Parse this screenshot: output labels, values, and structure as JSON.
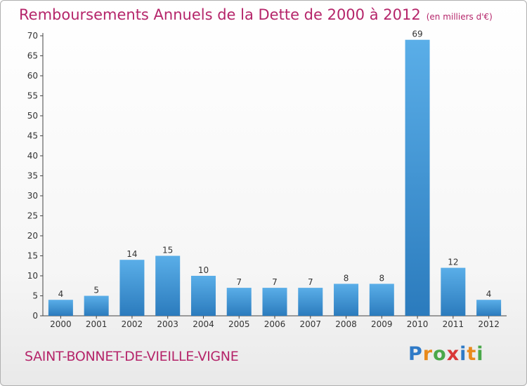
{
  "title": "Remboursements Annuels de la Dette de 2000 à 2012",
  "unit_note": "(en milliers d'€)",
  "commune": "SAINT-BONNET-DE-VIEILLE-VIGNE",
  "logo": {
    "letters": [
      "P",
      "r",
      "o",
      "x",
      "i",
      "t",
      "i"
    ],
    "colors": [
      "#2f7ac7",
      "#e88a1c",
      "#4aa84a",
      "#d93838",
      "#2f7ac7",
      "#e88a1c",
      "#4aa84a"
    ]
  },
  "colors": {
    "bar_light": "#5aaee8",
    "bar_dark": "#2b7bbd",
    "text": "#b5256a"
  },
  "chart_data": {
    "type": "bar",
    "title": "Remboursements Annuels de la Dette de 2000 à 2012",
    "categories": [
      "2000",
      "2001",
      "2002",
      "2003",
      "2004",
      "2005",
      "2006",
      "2007",
      "2008",
      "2009",
      "2010",
      "2011",
      "2012"
    ],
    "values": [
      4,
      5,
      14,
      15,
      10,
      7,
      7,
      7,
      8,
      8,
      69,
      12,
      4
    ],
    "data_labels": [
      "4",
      "5",
      "14",
      "15",
      "10",
      "7",
      "7",
      "7",
      "8",
      "8",
      "69",
      "12",
      "4"
    ],
    "yticks": [
      "0",
      "5",
      "10",
      "15",
      "20",
      "25",
      "30",
      "35",
      "40",
      "45",
      "50",
      "55",
      "60",
      "65",
      "70"
    ],
    "ylim": [
      0,
      70
    ],
    "grid": false,
    "legend": "none"
  }
}
